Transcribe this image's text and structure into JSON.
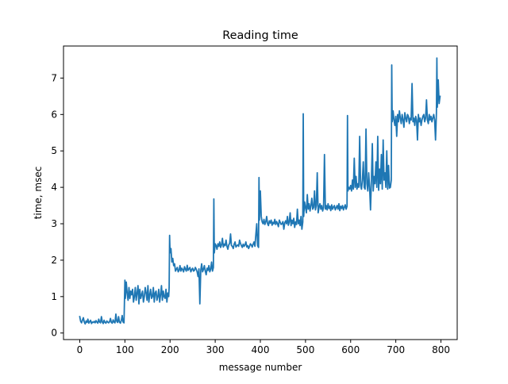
{
  "chart_data": {
    "type": "line",
    "title": "Reading time",
    "xlabel": "message number",
    "ylabel": "time, msec",
    "xlim": [
      -36,
      836
    ],
    "ylim": [
      -0.18,
      7.88
    ],
    "xticks": [
      0,
      100,
      200,
      300,
      400,
      500,
      600,
      700,
      800
    ],
    "yticks": [
      0,
      1,
      2,
      3,
      4,
      5,
      6,
      7
    ],
    "grid": false,
    "line_color": "#1f77b4",
    "series": [
      {
        "name": "",
        "x": [
          0,
          2,
          4,
          6,
          8,
          10,
          12,
          14,
          16,
          18,
          20,
          22,
          24,
          26,
          28,
          30,
          32,
          34,
          36,
          38,
          40,
          42,
          44,
          46,
          48,
          50,
          52,
          54,
          56,
          58,
          60,
          62,
          64,
          66,
          68,
          70,
          72,
          74,
          76,
          78,
          80,
          82,
          84,
          86,
          88,
          90,
          92,
          94,
          96,
          98,
          100,
          101,
          103,
          105,
          107,
          109,
          111,
          113,
          115,
          117,
          119,
          121,
          123,
          125,
          127,
          129,
          131,
          133,
          135,
          137,
          139,
          141,
          143,
          145,
          147,
          149,
          151,
          153,
          155,
          157,
          159,
          161,
          163,
          165,
          167,
          169,
          171,
          173,
          175,
          177,
          179,
          181,
          183,
          185,
          187,
          189,
          191,
          193,
          195,
          197,
          198,
          199,
          200,
          202,
          204,
          206,
          208,
          210,
          212,
          214,
          216,
          218,
          220,
          222,
          224,
          226,
          228,
          230,
          232,
          234,
          236,
          238,
          240,
          242,
          244,
          246,
          248,
          250,
          252,
          254,
          256,
          258,
          260,
          262,
          264,
          266,
          268,
          270,
          272,
          274,
          276,
          278,
          280,
          282,
          284,
          286,
          288,
          290,
          292,
          294,
          296,
          297,
          298,
          300,
          302,
          304,
          306,
          308,
          310,
          312,
          314,
          316,
          318,
          320,
          322,
          324,
          326,
          328,
          330,
          332,
          334,
          336,
          338,
          340,
          342,
          344,
          346,
          348,
          350,
          352,
          354,
          356,
          358,
          360,
          362,
          364,
          366,
          368,
          370,
          372,
          374,
          376,
          378,
          380,
          382,
          384,
          386,
          388,
          390,
          392,
          394,
          396,
          397,
          398,
          400,
          402,
          404,
          406,
          408,
          410,
          412,
          414,
          416,
          418,
          420,
          422,
          424,
          426,
          428,
          430,
          432,
          434,
          436,
          438,
          440,
          442,
          444,
          446,
          448,
          450,
          452,
          454,
          456,
          458,
          460,
          462,
          464,
          466,
          468,
          470,
          472,
          474,
          476,
          478,
          480,
          482,
          484,
          486,
          488,
          490,
          492,
          494,
          495,
          496,
          498,
          500,
          502,
          504,
          506,
          508,
          510,
          512,
          514,
          516,
          518,
          520,
          522,
          524,
          526,
          528,
          530,
          532,
          534,
          536,
          538,
          540,
          542,
          544,
          546,
          548,
          550,
          552,
          554,
          556,
          558,
          560,
          562,
          564,
          566,
          568,
          570,
          572,
          574,
          576,
          578,
          580,
          582,
          584,
          586,
          588,
          590,
          592,
          593,
          594,
          596,
          598,
          600,
          602,
          604,
          606,
          608,
          610,
          612,
          614,
          616,
          618,
          620,
          622,
          624,
          626,
          628,
          630,
          632,
          634,
          636,
          638,
          640,
          642,
          644,
          646,
          648,
          650,
          652,
          654,
          656,
          658,
          660,
          662,
          664,
          666,
          668,
          670,
          672,
          674,
          676,
          678,
          680,
          682,
          684,
          686,
          688,
          690,
          691,
          692,
          694,
          696,
          698,
          700,
          702,
          704,
          706,
          708,
          710,
          712,
          714,
          716,
          718,
          720,
          722,
          724,
          726,
          728,
          730,
          732,
          734,
          736,
          738,
          740,
          742,
          744,
          746,
          748,
          750,
          752,
          754,
          756,
          758,
          760,
          762,
          764,
          766,
          768,
          770,
          772,
          774,
          776,
          778,
          780,
          782,
          784,
          786,
          788,
          790,
          791,
          792,
          794,
          796,
          798
        ],
        "y": [
          0.45,
          0.32,
          0.28,
          0.36,
          0.42,
          0.3,
          0.25,
          0.33,
          0.29,
          0.38,
          0.27,
          0.31,
          0.35,
          0.26,
          0.3,
          0.29,
          0.32,
          0.28,
          0.34,
          0.3,
          0.27,
          0.38,
          0.3,
          0.28,
          0.45,
          0.3,
          0.26,
          0.35,
          0.29,
          0.27,
          0.33,
          0.3,
          0.28,
          0.31,
          0.4,
          0.29,
          0.27,
          0.36,
          0.3,
          0.28,
          0.52,
          0.32,
          0.29,
          0.45,
          0.3,
          0.27,
          0.34,
          0.48,
          0.3,
          0.28,
          1.45,
          0.95,
          1.4,
          1.1,
          0.9,
          1.25,
          0.95,
          1.15,
          1.05,
          1.2,
          0.85,
          1.0,
          1.25,
          0.9,
          1.1,
          1.3,
          0.8,
          1.2,
          0.95,
          1.05,
          1.15,
          0.85,
          1.0,
          1.25,
          1.1,
          0.9,
          1.3,
          0.85,
          1.05,
          1.2,
          0.95,
          1.0,
          1.25,
          0.85,
          1.1,
          1.15,
          0.9,
          1.0,
          1.2,
          0.85,
          1.05,
          1.3,
          0.9,
          1.15,
          1.0,
          0.95,
          1.2,
          0.85,
          1.1,
          1.0,
          1.25,
          2.68,
          2.2,
          2.32,
          1.95,
          2.05,
          1.85,
          1.9,
          1.7,
          1.75,
          1.8,
          1.68,
          1.72,
          1.85,
          1.7,
          1.78,
          1.74,
          1.68,
          1.82,
          1.75,
          1.7,
          1.86,
          1.72,
          1.76,
          1.8,
          1.68,
          1.74,
          1.78,
          1.7,
          1.72,
          1.8,
          1.75,
          1.68,
          1.55,
          1.76,
          0.8,
          1.72,
          1.9,
          1.68,
          1.75,
          1.85,
          1.7,
          1.6,
          1.78,
          1.72,
          1.85,
          1.68,
          1.75,
          1.95,
          1.7,
          1.8,
          3.68,
          2.2,
          2.45,
          2.4,
          2.3,
          2.45,
          2.38,
          2.5,
          2.35,
          2.42,
          2.6,
          2.36,
          2.44,
          2.4,
          2.55,
          2.38,
          2.3,
          2.42,
          2.46,
          2.72,
          2.4,
          2.38,
          2.32,
          2.44,
          2.5,
          2.36,
          2.4,
          2.42,
          2.38,
          2.55,
          2.46,
          2.4,
          2.35,
          2.44,
          2.38,
          2.42,
          2.5,
          2.36,
          2.4,
          2.32,
          2.38,
          2.45,
          2.42,
          2.36,
          2.44,
          2.5,
          2.38,
          2.7,
          3.0,
          2.4,
          2.35,
          4.27,
          3.1,
          3.9,
          3.2,
          3.05,
          3.0,
          3.12,
          2.98,
          3.05,
          3.2,
          3.0,
          2.95,
          3.08,
          3.02,
          3.1,
          2.96,
          3.04,
          3.0,
          3.12,
          2.98,
          3.06,
          3.0,
          2.92,
          3.1,
          3.04,
          2.98,
          3.0,
          3.06,
          2.85,
          3.02,
          3.08,
          3.0,
          3.2,
          2.96,
          3.05,
          3.3,
          2.95,
          3.1,
          3.0,
          3.15,
          2.9,
          3.05,
          2.98,
          3.4,
          3.0,
          3.1,
          2.95,
          3.2,
          2.85,
          3.05,
          6.02,
          3.2,
          3.6,
          3.45,
          3.3,
          3.8,
          3.4,
          3.55,
          3.35,
          3.5,
          3.7,
          3.4,
          3.45,
          3.9,
          3.38,
          3.5,
          4.4,
          3.3,
          3.45,
          3.55,
          3.4,
          3.5,
          3.35,
          3.45,
          4.9,
          3.4,
          3.5,
          3.38,
          3.55,
          3.42,
          3.48,
          3.36,
          3.52,
          3.4,
          3.46,
          3.5,
          3.38,
          3.44,
          3.5,
          3.4,
          3.55,
          3.36,
          3.48,
          3.42,
          3.5,
          3.38,
          3.45,
          3.52,
          3.4,
          3.48,
          5.97,
          3.9,
          4.0,
          3.95,
          4.05,
          3.9,
          4.2,
          3.95,
          4.8,
          4.0,
          4.3,
          3.95,
          4.1,
          4.0,
          5.4,
          4.05,
          3.95,
          4.2,
          4.7,
          4.0,
          3.95,
          5.6,
          4.1,
          3.9,
          4.4,
          4.0,
          3.38,
          4.2,
          5.2,
          3.9,
          4.3,
          4.1,
          4.7,
          4.0,
          5.4,
          3.92,
          4.5,
          4.1,
          4.9,
          3.95,
          5.3,
          4.2,
          4.4,
          4.0,
          5.0,
          3.95,
          4.6,
          3.98,
          4.0,
          4.2,
          7.36,
          5.8,
          6.1,
          5.85,
          5.7,
          5.95,
          5.4,
          6.0,
          5.8,
          6.1,
          5.9,
          5.75,
          6.0,
          5.85,
          5.65,
          6.05,
          5.9,
          5.8,
          6.0,
          5.95,
          5.75,
          5.9,
          5.85,
          6.85,
          5.8,
          5.9,
          5.7,
          5.95,
          5.85,
          5.3,
          6.0,
          5.8,
          5.9,
          5.7,
          5.85,
          5.95,
          6.0,
          5.8,
          5.9,
          6.4,
          5.85,
          5.75,
          6.0,
          5.85,
          5.95,
          5.8,
          5.9,
          6.0,
          5.85,
          5.3,
          6.05,
          7.55,
          6.2,
          6.95,
          6.3,
          6.5
        ]
      }
    ]
  }
}
